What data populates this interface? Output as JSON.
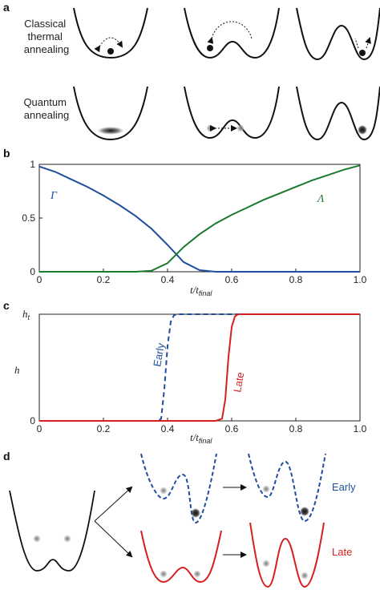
{
  "panel_a": {
    "label": "a",
    "rows": [
      {
        "lines": [
          "Classical",
          "thermal",
          "annealing"
        ]
      },
      {
        "lines": [
          "Quantum",
          "annealing"
        ]
      }
    ]
  },
  "panel_d": {
    "label": "d",
    "early_label": "Early",
    "late_label": "Late"
  },
  "colors": {
    "blue": "#1f4e9e",
    "green": "#1a7a2e",
    "red": "#d62020",
    "black": "#111111"
  },
  "chart_data": [
    {
      "panel": "b",
      "type": "line",
      "xlabel": "t/t",
      "xlabel_sub": "final",
      "xlim": [
        0,
        1.0
      ],
      "ylim": [
        0,
        1
      ],
      "xticks": [
        "0",
        "0.2",
        "0.4",
        "0.6",
        "0.8",
        "1.0"
      ],
      "xtick_values": [
        0,
        0.2,
        0.4,
        0.6,
        0.8,
        1.0
      ],
      "yticks": [
        "0",
        "0.5",
        "1"
      ],
      "ytick_values": [
        0,
        0.5,
        1
      ],
      "series": [
        {
          "name": "Γ",
          "color": "#1f4e9e",
          "x": [
            0,
            0.05,
            0.1,
            0.15,
            0.2,
            0.25,
            0.3,
            0.35,
            0.4,
            0.45,
            0.5,
            0.55,
            0.6,
            0.7,
            0.8,
            0.9,
            1.0
          ],
          "y": [
            0.98,
            0.93,
            0.86,
            0.79,
            0.71,
            0.62,
            0.52,
            0.4,
            0.25,
            0.09,
            0.015,
            0.0,
            0.0,
            0.0,
            0.0,
            0.0,
            0.0
          ]
        },
        {
          "name": "Λ",
          "color": "#1a7a2e",
          "x": [
            0,
            0.1,
            0.2,
            0.3,
            0.35,
            0.4,
            0.45,
            0.5,
            0.55,
            0.6,
            0.65,
            0.7,
            0.75,
            0.8,
            0.85,
            0.9,
            0.95,
            1.0
          ],
          "y": [
            0.0,
            0.0,
            0.0,
            0.0,
            0.01,
            0.08,
            0.23,
            0.35,
            0.45,
            0.53,
            0.6,
            0.67,
            0.73,
            0.79,
            0.85,
            0.9,
            0.95,
            0.99
          ]
        }
      ]
    },
    {
      "panel": "c",
      "type": "line",
      "xlabel": "t/t",
      "xlabel_sub": "final",
      "ylabel": "h",
      "xlim": [
        0,
        1.0
      ],
      "ylim": [
        0,
        1
      ],
      "xticks": [
        "0",
        "0.2",
        "0.4",
        "0.6",
        "0.8",
        "1.0"
      ],
      "xtick_values": [
        0,
        0.2,
        0.4,
        0.6,
        0.8,
        1.0
      ],
      "yticks": [
        "0",
        "h"
      ],
      "ytick_sub": "t",
      "ytick_values": [
        0,
        1
      ],
      "series": [
        {
          "name": "Early",
          "color": "#1f4e9e",
          "dash": true,
          "x": [
            0,
            0.37,
            0.38,
            0.39,
            0.4,
            0.41,
            0.42,
            0.43,
            1.0
          ],
          "y": [
            0,
            0,
            0.02,
            0.3,
            0.7,
            0.93,
            0.99,
            1.0,
            1.0
          ]
        },
        {
          "name": "Late",
          "color": "#d62020",
          "dash": false,
          "x": [
            0,
            0.1,
            0.3,
            0.5,
            0.55,
            0.57,
            0.58,
            0.59,
            0.6,
            0.61,
            0.62,
            1.0
          ],
          "y": [
            0,
            0,
            0,
            0,
            0.0,
            0.02,
            0.2,
            0.6,
            0.88,
            0.98,
            1.0,
            1.0
          ]
        }
      ]
    }
  ]
}
